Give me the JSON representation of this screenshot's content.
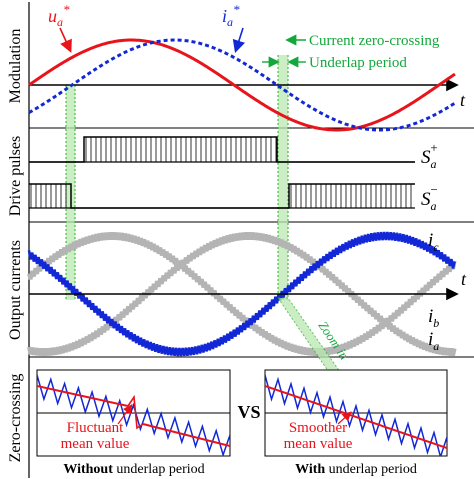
{
  "row_labels": {
    "modulation": "Modulation",
    "drive_pulses": "Drive pulses",
    "output_currents": "Output currents",
    "zero_crossing": "Zero-crossing"
  },
  "signal_labels": {
    "ua_star": "u",
    "ua_star_sub": "a",
    "ua_star_sup": "*",
    "ia_star": "i",
    "ia_star_sub": "a",
    "ia_star_sup": "*",
    "time_axis": "t",
    "s_plus": "S",
    "s_plus_sub": "a",
    "s_plus_sup": "+",
    "s_minus": "S",
    "s_minus_sub": "a",
    "s_minus_sup": "−",
    "ic": "i",
    "ic_sub": "c",
    "ib": "i",
    "ib_sub": "b",
    "ia": "i",
    "ia_sub": "a"
  },
  "annotations": {
    "current_zero_crossing": "Current zero-crossing",
    "underlap_period": "Underlap period",
    "zoom_in": "Zoom in"
  },
  "comparison": {
    "left_note_line1": "Fluctuant",
    "left_note_line2": "mean value",
    "right_note_line1": "Smoother",
    "right_note_line2": "mean value",
    "vs": "VS",
    "left_caption_bold": "Without",
    "left_caption_rest": " underlap period",
    "right_caption_bold": "With",
    "right_caption_rest": " underlap period"
  },
  "colors": {
    "ua_star": "#e8141c",
    "ia_star": "#1228d6",
    "ic": "#b4b4b4",
    "highlight_fill": "#b9e8b0",
    "highlight_line": "#2bb02b",
    "annotation_green": "#14a83c",
    "note_red": "#e8141c"
  }
}
